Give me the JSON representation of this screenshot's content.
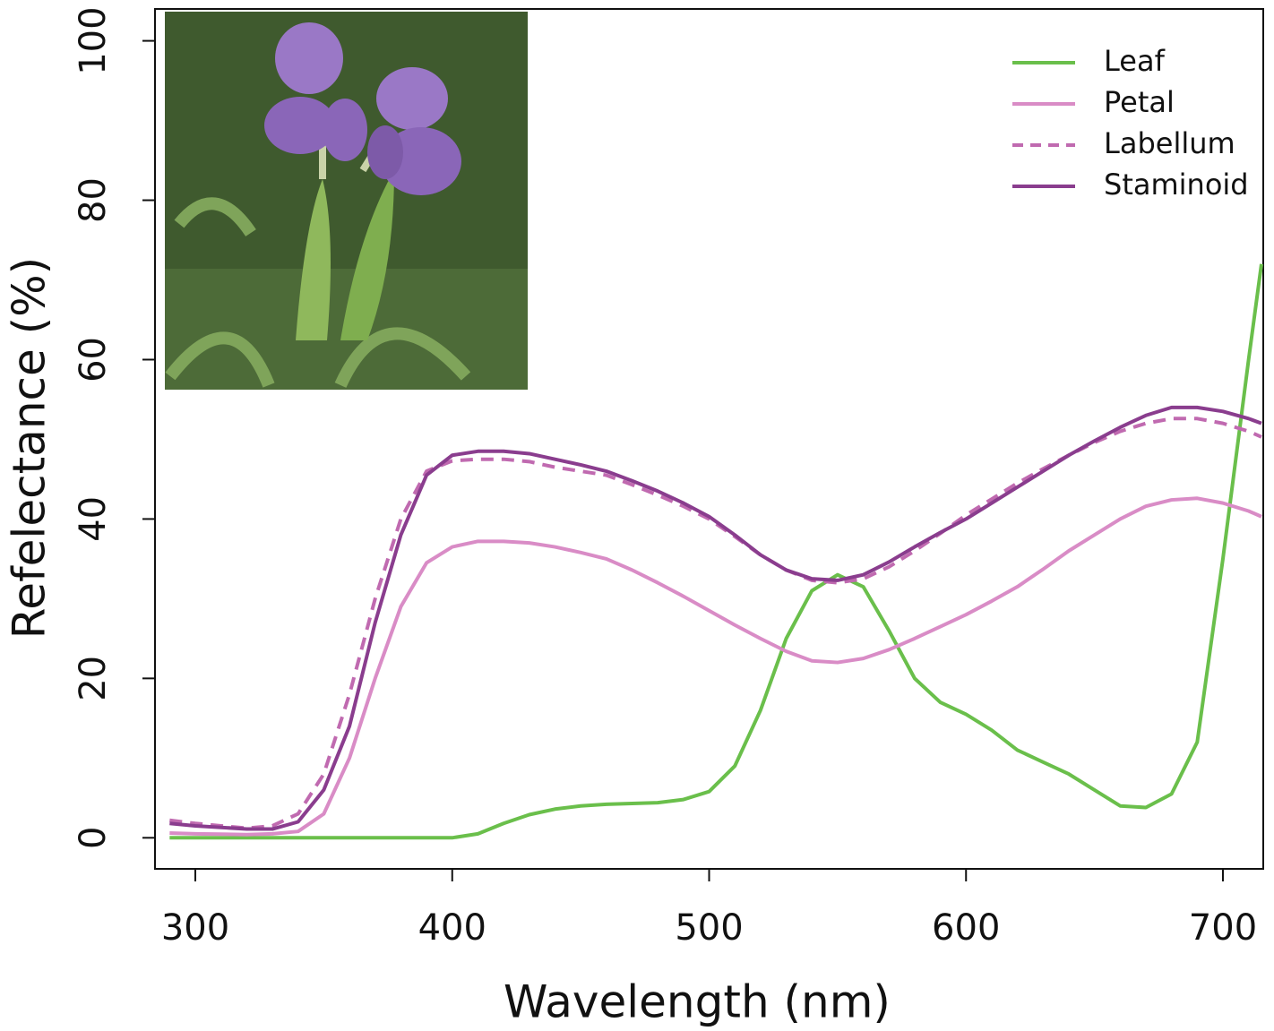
{
  "chart_data": {
    "type": "line",
    "xlabel": "Wavelength (nm)",
    "ylabel": "Refelectance (%)",
    "x": [
      290,
      300,
      310,
      320,
      330,
      340,
      350,
      360,
      370,
      380,
      390,
      400,
      410,
      420,
      430,
      440,
      450,
      460,
      470,
      480,
      490,
      500,
      510,
      520,
      530,
      540,
      550,
      560,
      570,
      580,
      590,
      600,
      610,
      620,
      630,
      640,
      650,
      660,
      670,
      680,
      690,
      700,
      710,
      715
    ],
    "series": [
      {
        "name": "Leaf",
        "color": "#6abf4b",
        "dashed": false,
        "values": [
          0,
          0,
          0,
          0,
          0,
          0,
          0,
          0,
          0,
          0,
          0,
          0,
          0.5,
          1.8,
          2.9,
          3.6,
          4.0,
          4.2,
          4.3,
          4.4,
          4.8,
          5.8,
          9,
          16,
          25,
          31,
          33,
          31.5,
          26,
          20,
          17,
          15.5,
          13.5,
          11,
          9.5,
          8,
          6,
          4,
          3.8,
          5.5,
          12,
          35,
          60,
          72
        ]
      },
      {
        "name": "Petal",
        "color": "#d98cc6",
        "dashed": false,
        "values": [
          0.6,
          0.5,
          0.45,
          0.4,
          0.5,
          0.8,
          3,
          10,
          20,
          29,
          34.5,
          36.5,
          37.2,
          37.2,
          37,
          36.5,
          35.8,
          35,
          33.6,
          32,
          30.3,
          28.5,
          26.7,
          25,
          23.4,
          22.2,
          22,
          22.5,
          23.6,
          25,
          26.5,
          28,
          29.7,
          31.5,
          33.7,
          36,
          38,
          40,
          41.6,
          42.4,
          42.6,
          42,
          41,
          40.3
        ]
      },
      {
        "name": "Labellum",
        "color": "#c06ab0",
        "dashed": true,
        "values": [
          2.2,
          1.8,
          1.5,
          1.2,
          1.5,
          3,
          8,
          18,
          30,
          40,
          46,
          47.3,
          47.5,
          47.5,
          47.2,
          46.5,
          46,
          45.5,
          44.3,
          43,
          41.6,
          40,
          37.8,
          35.5,
          33.6,
          32.3,
          32,
          32.5,
          34,
          36,
          38.2,
          40.5,
          42.5,
          44.5,
          46.3,
          48,
          49.6,
          51,
          52,
          52.6,
          52.6,
          52,
          51,
          50.3
        ]
      },
      {
        "name": "Staminoid",
        "color": "#8a3d8e",
        "dashed": false,
        "values": [
          1.8,
          1.5,
          1.3,
          1.1,
          1.1,
          2,
          6,
          14,
          27,
          38,
          45.5,
          48,
          48.5,
          48.5,
          48.2,
          47.5,
          46.8,
          46,
          44.8,
          43.5,
          42,
          40.3,
          38,
          35.5,
          33.6,
          32.5,
          32.3,
          33,
          34.6,
          36.5,
          38.3,
          40,
          42,
          44,
          46,
          48,
          49.8,
          51.5,
          53,
          54,
          54,
          53.5,
          52.6,
          52
        ]
      }
    ],
    "xlim": [
      284.3,
      715.7
    ],
    "ylim": [
      -3.9,
      104
    ],
    "xticks": [
      300,
      400,
      500,
      600,
      700
    ],
    "yticks": [
      0,
      20,
      40,
      60,
      80,
      100
    ],
    "legend": "top-right"
  }
}
